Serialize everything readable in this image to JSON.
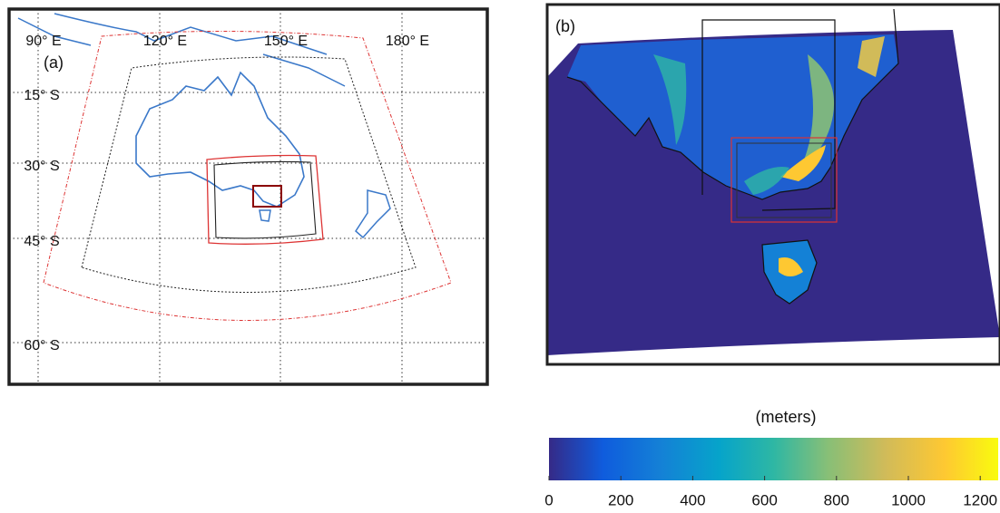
{
  "panel_a": {
    "label": "(a)",
    "lon_labels": [
      "90° E",
      "120° E",
      "150° E",
      "180° E"
    ],
    "lat_labels": [
      "15° S",
      "30° S",
      "45° S",
      "60° S"
    ]
  },
  "panel_b": {
    "label": "(b)"
  },
  "colorbar": {
    "label": "(meters)",
    "lim": [
      0,
      1250
    ],
    "ticks": [
      0,
      200,
      400,
      600,
      800,
      1000,
      1200
    ]
  }
}
